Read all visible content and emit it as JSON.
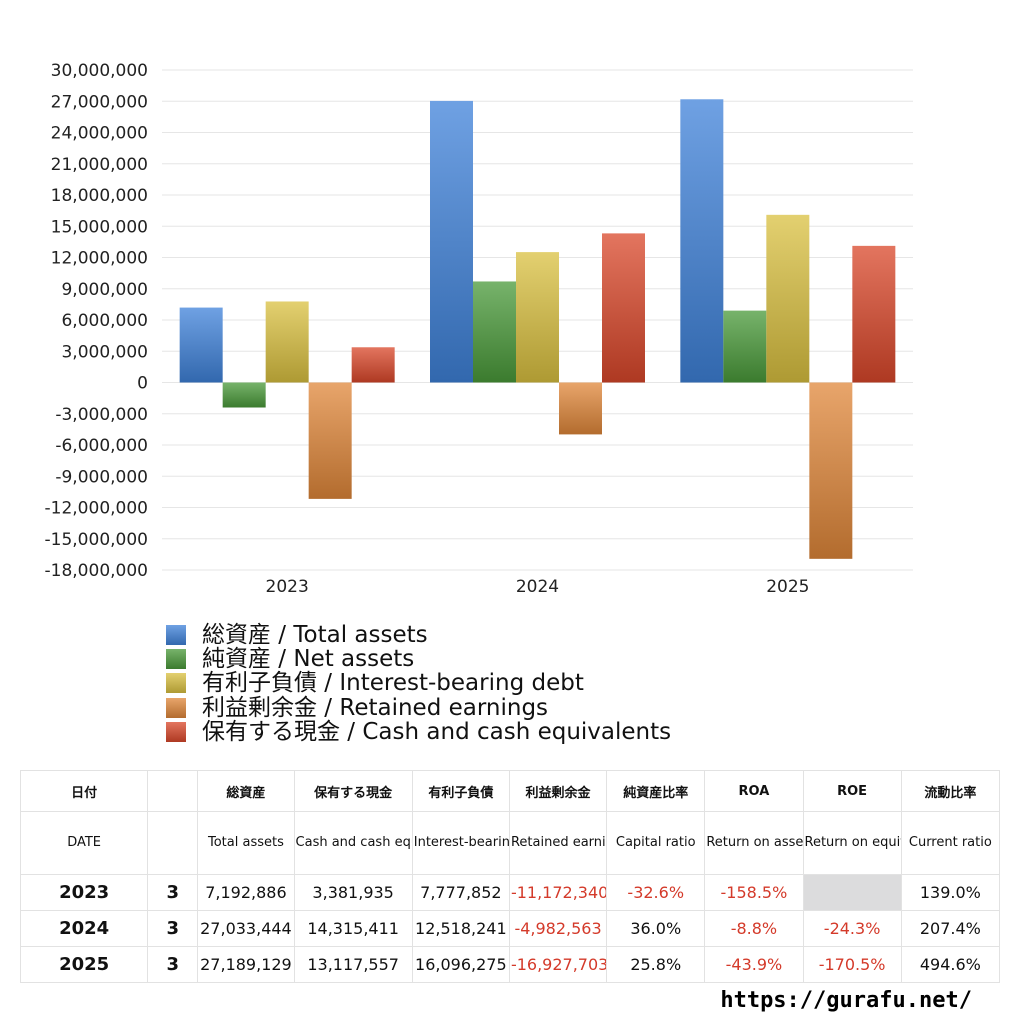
{
  "chart_data": {
    "type": "bar",
    "categories": [
      "2023",
      "2024",
      "2025"
    ],
    "series": [
      {
        "name": "総資産 / Total assets",
        "color": "#3f82d9",
        "values": [
          7192886,
          27033444,
          27189129
        ]
      },
      {
        "name": "純資産 / Net assets",
        "color": "#4a9a3a",
        "values": [
          -2400000,
          9700000,
          6900000
        ]
      },
      {
        "name": "有利子負債 / Interest-bearing debt",
        "color": "#d9c040",
        "values": [
          7777852,
          12518241,
          16096275
        ]
      },
      {
        "name": "利益剰余金 / Retained earnings",
        "color": "#e0873a",
        "values": [
          -11172340,
          -4982563,
          -16927703
        ]
      },
      {
        "name": "保有する現金 /  Cash and cash equivalents",
        "color": "#d9472a",
        "values": [
          3381935,
          14315411,
          13117557
        ]
      }
    ],
    "ylim": [
      -18000000,
      30000000
    ],
    "yticks": [
      "30,000,000",
      "27,000,000",
      "24,000,000",
      "21,000,000",
      "18,000,000",
      "15,000,000",
      "12,000,000",
      "9,000,000",
      "6,000,000",
      "3,000,000",
      "0",
      "-3,000,000",
      "-6,000,000",
      "-9,000,000",
      "-12,000,000",
      "-15,000,000",
      "-18,000,000"
    ],
    "grid": true,
    "legend_position": "bottom-left"
  },
  "table": {
    "header_jp": [
      "日付",
      "",
      "総資産",
      "保有する現金",
      "有利子負債",
      "利益剰余金",
      "純資産比率",
      "ROA",
      "ROE",
      "流動比率"
    ],
    "header_en": [
      "DATE",
      "",
      "Total assets",
      "Cash and cash equivalents",
      "Interest-bearing debt",
      "Retained earnings",
      "Capital ratio",
      "Return on assets",
      "Return on equity",
      "Current ratio"
    ],
    "rows": [
      {
        "year": "2023",
        "q": "3",
        "total_assets": "7,192,886",
        "cash": "3,381,935",
        "debt": "7,777,852",
        "retained": "-11,172,340",
        "capital_ratio": "-32.6%",
        "roa": "-158.5%",
        "roe": "",
        "current_ratio": "139.0%"
      },
      {
        "year": "2024",
        "q": "3",
        "total_assets": "27,033,444",
        "cash": "14,315,411",
        "debt": "12,518,241",
        "retained": "-4,982,563",
        "capital_ratio": "36.0%",
        "roa": "-8.8%",
        "roe": "-24.3%",
        "current_ratio": "207.4%"
      },
      {
        "year": "2025",
        "q": "3",
        "total_assets": "27,189,129",
        "cash": "13,117,557",
        "debt": "16,096,275",
        "retained": "-16,927,703",
        "capital_ratio": "25.8%",
        "roa": "-43.9%",
        "roe": "-170.5%",
        "current_ratio": "494.6%"
      }
    ]
  },
  "footer": {
    "url": "https://gurafu.net/"
  }
}
